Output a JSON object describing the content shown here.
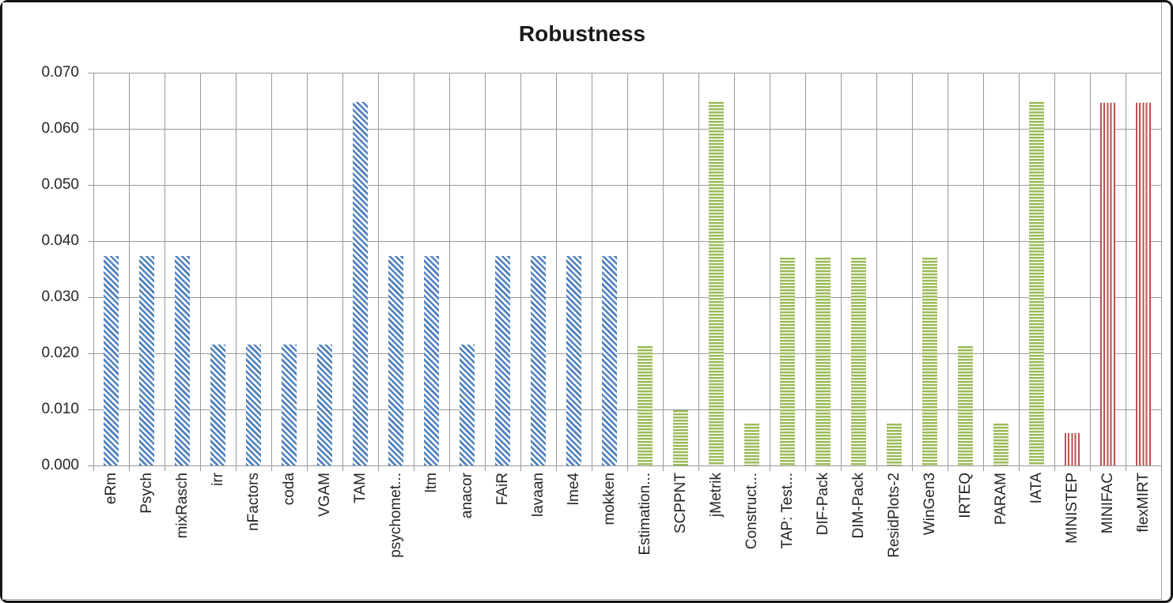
{
  "frame": {
    "border_color": "#151515",
    "chart_border_color": "#a6a6a6",
    "background": "#ffffff"
  },
  "chart_data": {
    "type": "bar",
    "title": "Robustness",
    "xlabel": "",
    "ylabel": "",
    "ylim": [
      0,
      0.07
    ],
    "ytick_step": 0.01,
    "ytick_labels": [
      "0.000",
      "0.010",
      "0.020",
      "0.030",
      "0.040",
      "0.050",
      "0.060",
      "0.070"
    ],
    "grid": true,
    "gridline_color": "#9a9a9a",
    "axis_text_color": "#262626",
    "legend": "none",
    "categories": [
      "eRm",
      "Psych",
      "mixRasch",
      "irr",
      "nFactors",
      "coda",
      "VGAM",
      "TAM",
      "psychomet...",
      "ltm",
      "anacor",
      "FAiR",
      "lavaan",
      "lme4",
      "mokken",
      "Estimation...",
      "SCPPNT",
      "jMetrik",
      "Construct...",
      "TAP: Test...",
      "DIF-Pack",
      "DIM-Pack",
      "ResidPlots-2",
      "WinGen3",
      "IRTEQ",
      "PARAM",
      "IATA",
      "MINISTEP",
      "MINIFAC",
      "flexMIRT"
    ],
    "values": [
      0.0373,
      0.0373,
      0.0373,
      0.0215,
      0.0215,
      0.0215,
      0.0215,
      0.0648,
      0.0373,
      0.0373,
      0.0215,
      0.0373,
      0.0373,
      0.0373,
      0.0373,
      0.0213,
      0.0099,
      0.0648,
      0.0075,
      0.037,
      0.037,
      0.037,
      0.0075,
      0.037,
      0.0213,
      0.0075,
      0.0648,
      0.0058,
      0.0647,
      0.0647
    ],
    "groups": [
      "blue",
      "blue",
      "blue",
      "blue",
      "blue",
      "blue",
      "blue",
      "blue",
      "blue",
      "blue",
      "blue",
      "blue",
      "blue",
      "blue",
      "blue",
      "green",
      "green",
      "green",
      "green",
      "green",
      "green",
      "green",
      "green",
      "green",
      "green",
      "green",
      "green",
      "red",
      "red",
      "red"
    ],
    "series_styles": {
      "blue": {
        "color": "#4f81bd",
        "pattern": "diagonal-hatch"
      },
      "green": {
        "color": "#9bbb59",
        "pattern": "horizontal-stripes"
      },
      "red": {
        "color": "#c0504d",
        "pattern": "vertical-stripes"
      }
    }
  }
}
